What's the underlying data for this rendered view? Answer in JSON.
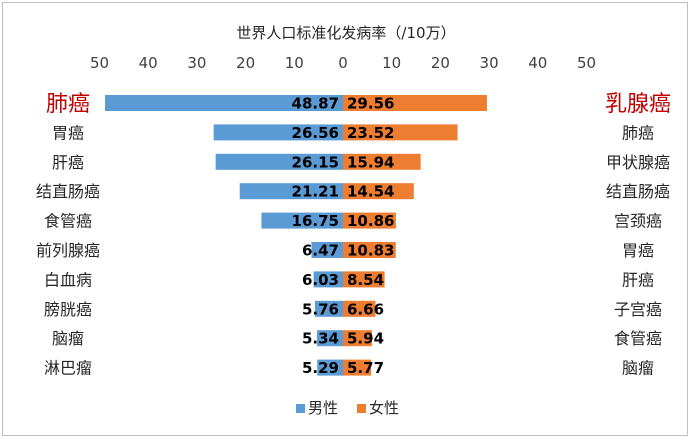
{
  "chart_data": {
    "type": "bar",
    "orientation": "horizontal-butterfly",
    "title": "世界人口标准化发病率（/10万）",
    "x_ticks": [
      "50",
      "40",
      "30",
      "20",
      "10",
      "0",
      "10",
      "20",
      "30",
      "40",
      "50"
    ],
    "xlim": [
      -50,
      50
    ],
    "legend_position": "bottom",
    "series": [
      {
        "name": "男性",
        "color": "#5b9bd5",
        "side": "left",
        "categories": [
          "肺癌",
          "胃癌",
          "肝癌",
          "结直肠癌",
          "食管癌",
          "前列腺癌",
          "白血病",
          "膀胱癌",
          "脑瘤",
          "淋巴瘤"
        ],
        "values": [
          48.87,
          26.56,
          26.15,
          21.21,
          16.75,
          6.47,
          6.03,
          5.76,
          5.34,
          5.29
        ],
        "labels": [
          "48.87",
          "26.56",
          "26.15",
          "21.21",
          "16.75",
          "6.47",
          "6.03",
          "5.76",
          "5.34",
          "5.29"
        ]
      },
      {
        "name": "女性",
        "color": "#ed7d31",
        "side": "right",
        "categories": [
          "乳腺癌",
          "肺癌",
          "甲状腺癌",
          "结直肠癌",
          "宫颈癌",
          "胃癌",
          "肝癌",
          "子宫癌",
          "食管癌",
          "脑瘤"
        ],
        "values": [
          29.56,
          23.52,
          15.94,
          14.54,
          10.86,
          10.83,
          8.54,
          6.66,
          5.94,
          5.77
        ],
        "labels": [
          "29.56",
          "23.52",
          "15.94",
          "14.54",
          "10.86",
          "10.83",
          "8.54",
          "6.66",
          "5.94",
          "5.77"
        ]
      }
    ]
  }
}
